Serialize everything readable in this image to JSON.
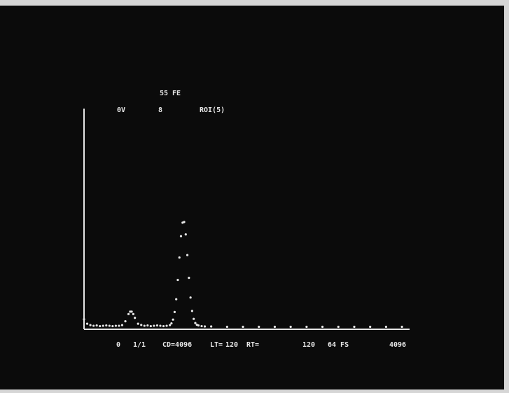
{
  "chart_data": {
    "type": "scatter",
    "title": "55 FE",
    "header_labels": [
      "0V",
      "8",
      "ROI(5)"
    ],
    "footer_labels": [
      "0",
      "1/1",
      "CD=4096",
      "LT=",
      "120",
      "RT=",
      "120",
      "64 FS",
      "4096"
    ],
    "color": "#e6e6e6",
    "xlim": [
      0,
      4096
    ],
    "ylim": [
      0,
      64
    ],
    "x": [
      0,
      40,
      80,
      120,
      160,
      200,
      240,
      280,
      320,
      360,
      400,
      440,
      480,
      520,
      560,
      580,
      600,
      620,
      640,
      680,
      720,
      760,
      800,
      840,
      880,
      920,
      960,
      1000,
      1040,
      1080,
      1100,
      1120,
      1140,
      1160,
      1180,
      1200,
      1220,
      1240,
      1260,
      1280,
      1300,
      1320,
      1340,
      1360,
      1380,
      1400,
      1420,
      1440,
      1480,
      1520,
      1600,
      1800,
      2000,
      2200,
      2400,
      2600,
      2800,
      3000,
      3200,
      3400,
      3600,
      3800,
      4000
    ],
    "values": [
      2.5,
      1.2,
      0.8,
      0.6,
      0.7,
      0.5,
      0.6,
      0.7,
      0.6,
      0.5,
      0.6,
      0.6,
      0.8,
      1.9,
      4.0,
      4.7,
      4.7,
      4.0,
      2.9,
      1.2,
      0.85,
      0.6,
      0.7,
      0.5,
      0.6,
      0.7,
      0.6,
      0.5,
      0.6,
      0.8,
      1.3,
      2.4,
      4.6,
      8.3,
      13.9,
      20.4,
      26.6,
      30.5,
      30.7,
      27.1,
      21.1,
      14.5,
      8.8,
      4.9,
      2.6,
      1.4,
      0.9,
      0.7,
      0.5,
      0.4,
      0.4,
      0.3,
      0.3,
      0.3,
      0.3,
      0.3,
      0.3,
      0.3,
      0.3,
      0.3,
      0.3,
      0.3,
      0.3
    ]
  }
}
